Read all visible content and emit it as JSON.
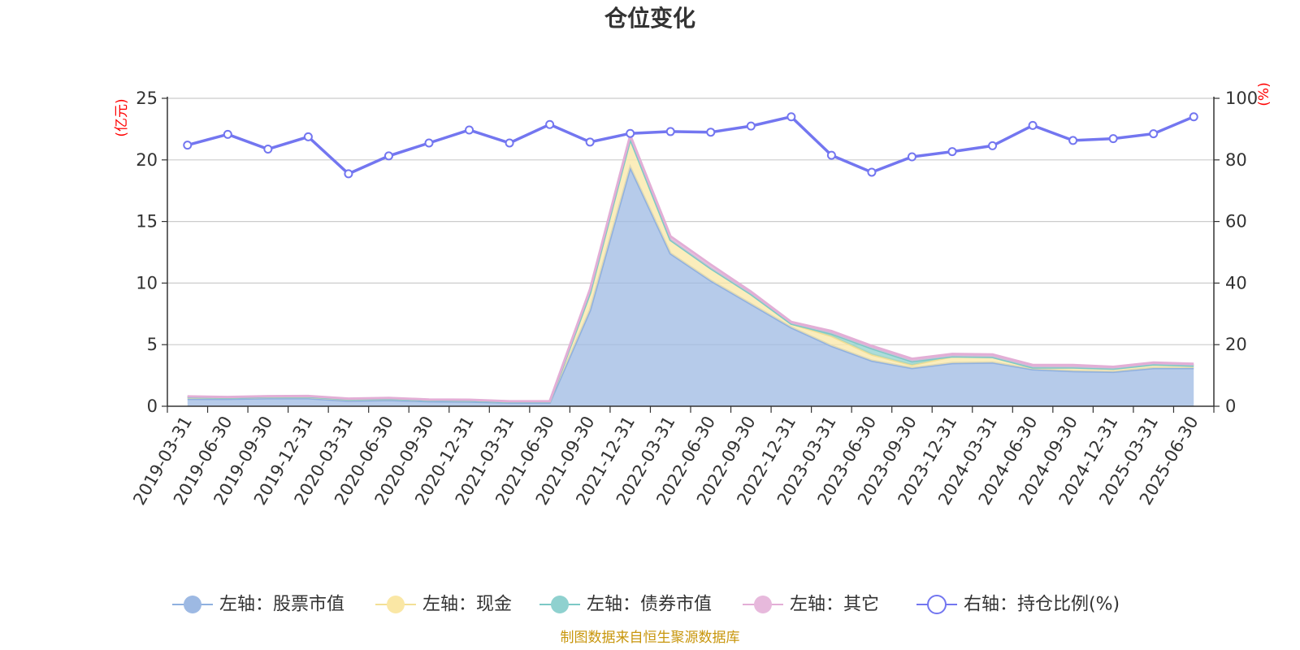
{
  "chart_data": {
    "type": "area",
    "title": "仓位变化",
    "left_unit": "(亿元)",
    "right_unit": "(%)",
    "categories": [
      "2019-03-31",
      "2019-06-30",
      "2019-09-30",
      "2019-12-31",
      "2020-03-31",
      "2020-06-30",
      "2020-09-30",
      "2020-12-31",
      "2021-03-31",
      "2021-06-30",
      "2021-09-30",
      "2021-12-31",
      "2022-03-31",
      "2022-06-30",
      "2022-09-30",
      "2022-12-31",
      "2023-03-31",
      "2023-06-30",
      "2023-09-30",
      "2023-12-31",
      "2024-03-31",
      "2024-06-30",
      "2024-09-30",
      "2024-12-31",
      "2025-03-31",
      "2025-06-30"
    ],
    "left_axis": {
      "min": 0,
      "max": 25,
      "ticks": [
        "0",
        "5",
        "10",
        "15",
        "20",
        "25"
      ]
    },
    "right_axis": {
      "min": 0,
      "max": 100,
      "ticks": [
        "0",
        "20",
        "40",
        "60",
        "80",
        "100"
      ]
    },
    "grid": true,
    "legend_position": "bottom",
    "series": [
      {
        "name": "左轴：股票市值",
        "axis": "left",
        "stack": true,
        "color": "#9db9e3",
        "values": [
          0.6,
          0.6,
          0.65,
          0.65,
          0.45,
          0.5,
          0.4,
          0.38,
          0.3,
          0.3,
          7.8,
          19.4,
          12.4,
          10.2,
          8.3,
          6.4,
          4.9,
          3.7,
          3.1,
          3.5,
          3.55,
          3.0,
          2.85,
          2.8,
          3.1,
          3.1
        ]
      },
      {
        "name": "左轴：现金",
        "axis": "left",
        "stack": true,
        "color": "#fae7a5",
        "values": [
          0.15,
          0.1,
          0.12,
          0.13,
          0.12,
          0.12,
          0.1,
          0.1,
          0.06,
          0.06,
          1.4,
          2.3,
          1.1,
          1.0,
          0.8,
          0.3,
          0.8,
          0.5,
          0.25,
          0.55,
          0.45,
          0.15,
          0.3,
          0.25,
          0.3,
          0.2
        ]
      },
      {
        "name": "左轴：债券市值",
        "axis": "left",
        "stack": true,
        "color": "#8fd1cf",
        "values": [
          0,
          0,
          0,
          0,
          0,
          0,
          0,
          0,
          0,
          0,
          0,
          0,
          0,
          0,
          0,
          0,
          0.2,
          0.5,
          0.3,
          0,
          0,
          0,
          0,
          0,
          0,
          0
        ]
      },
      {
        "name": "左轴：其它",
        "axis": "left",
        "stack": true,
        "color": "#e7b9dc",
        "values": [
          0.05,
          0.05,
          0.05,
          0.05,
          0.05,
          0.05,
          0.05,
          0.05,
          0.04,
          0.04,
          0.3,
          0.3,
          0.3,
          0.3,
          0.2,
          0.15,
          0.2,
          0.2,
          0.2,
          0.2,
          0.2,
          0.2,
          0.2,
          0.15,
          0.15,
          0.15
        ]
      },
      {
        "name": "右轴：持仓比例(%)",
        "axis": "right",
        "type": "line",
        "color": "#7376f0",
        "values": [
          84.8,
          88.3,
          83.5,
          87.5,
          75.5,
          81.3,
          85.5,
          89.7,
          85.5,
          91.5,
          85.8,
          88.6,
          89.2,
          89.0,
          91.0,
          94.0,
          81.5,
          76.0,
          81.0,
          82.7,
          84.6,
          91.2,
          86.3,
          86.9,
          88.5,
          94.0
        ]
      }
    ],
    "source": "制图数据来自恒生聚源数据库"
  }
}
